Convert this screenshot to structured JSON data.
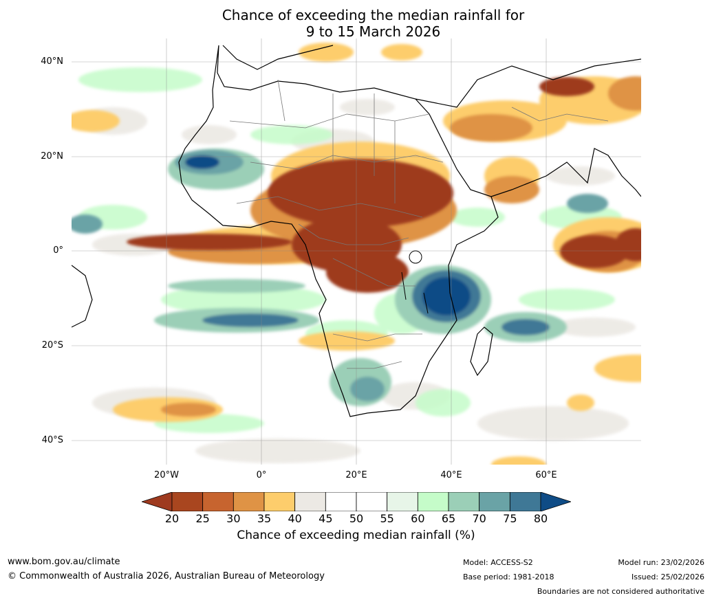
{
  "title": {
    "line1": "Chance of exceeding the median rainfall for",
    "line2": "9 to 15 March 2026"
  },
  "map": {
    "lat_labels": [
      "40°N",
      "20°N",
      "0°",
      "20°S",
      "40°S"
    ],
    "lon_labels": [
      "20°W",
      "0°",
      "20°E",
      "40°E",
      "60°E"
    ]
  },
  "colorbar": {
    "ticks": [
      "20",
      "25",
      "30",
      "35",
      "40",
      "45",
      "50",
      "55",
      "60",
      "65",
      "70",
      "75",
      "80"
    ],
    "colors": [
      "#9e3a1f",
      "#a9461f",
      "#c7642f",
      "#df9345",
      "#fdcd6c",
      "#ece9e4",
      "#ffffff",
      "#ffffff",
      "#e7f5e8",
      "#c5fcc9",
      "#9bcfb7",
      "#6aa3a6",
      "#3f7896",
      "#0f4c86"
    ],
    "label": "Chance of exceeding median rainfall (%)"
  },
  "footer": {
    "website": "www.bom.gov.au/climate",
    "copyright": "© Commonwealth of Australia 2026, Australian Bureau of Meteorology",
    "model": "Model: ACCESS-S2",
    "base_period": "Base period: 1981-2018",
    "model_run": "Model run: 23/02/2026",
    "issued": "Issued: 25/02/2026",
    "disclaimer": "Boundaries are not considered authoritative"
  }
}
